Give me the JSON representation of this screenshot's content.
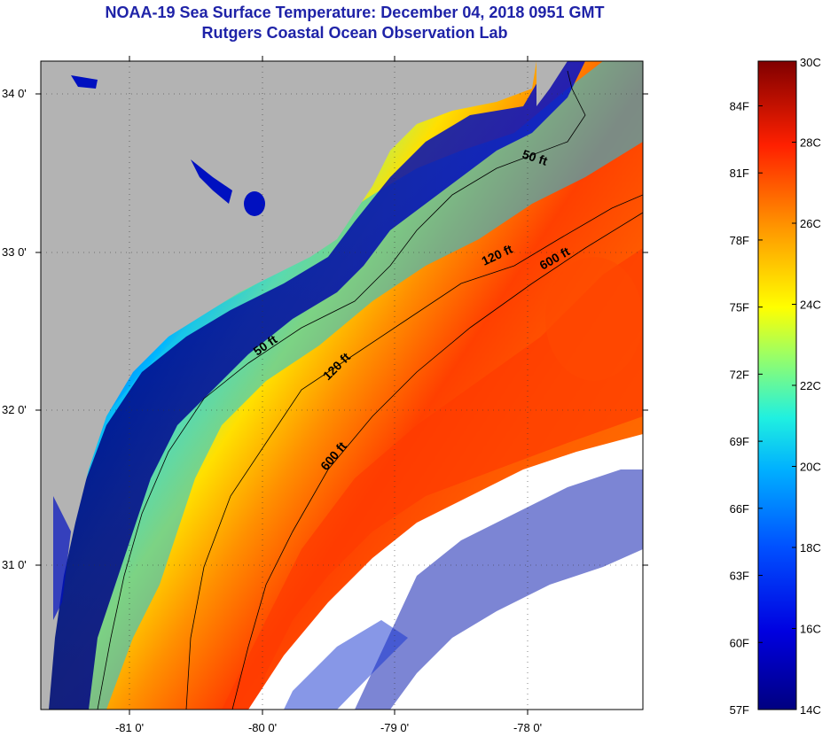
{
  "title": "NOAA-19 Sea Surface Temperature:  December 04, 2018 0951 GMT",
  "subtitle": "Rutgers Coastal Ocean Observation Lab",
  "map": {
    "lon_ticks": [
      "-81 0'",
      "-80 0'",
      "-79 0'",
      "-78 0'"
    ],
    "lat_ticks": [
      "34 0'",
      "33 0'",
      "32 0'",
      "31 0'"
    ],
    "contour_labels": [
      "50 ft",
      "120 ft",
      "600 ft",
      "50 ft",
      "120 ft",
      "600 ft"
    ],
    "colors": {
      "land": "#b3b3b3",
      "cloud": "#ffffff"
    }
  },
  "colorbar": {
    "celsius_labels": [
      "30C",
      "28C",
      "26C",
      "24C",
      "22C",
      "20C",
      "18C",
      "16C",
      "14C"
    ],
    "fahrenheit_labels": [
      "84F",
      "81F",
      "78F",
      "75F",
      "72F",
      "69F",
      "66F",
      "63F",
      "60F",
      "57F"
    ],
    "range_c": [
      14,
      30
    ],
    "range_f": [
      57,
      86
    ]
  }
}
